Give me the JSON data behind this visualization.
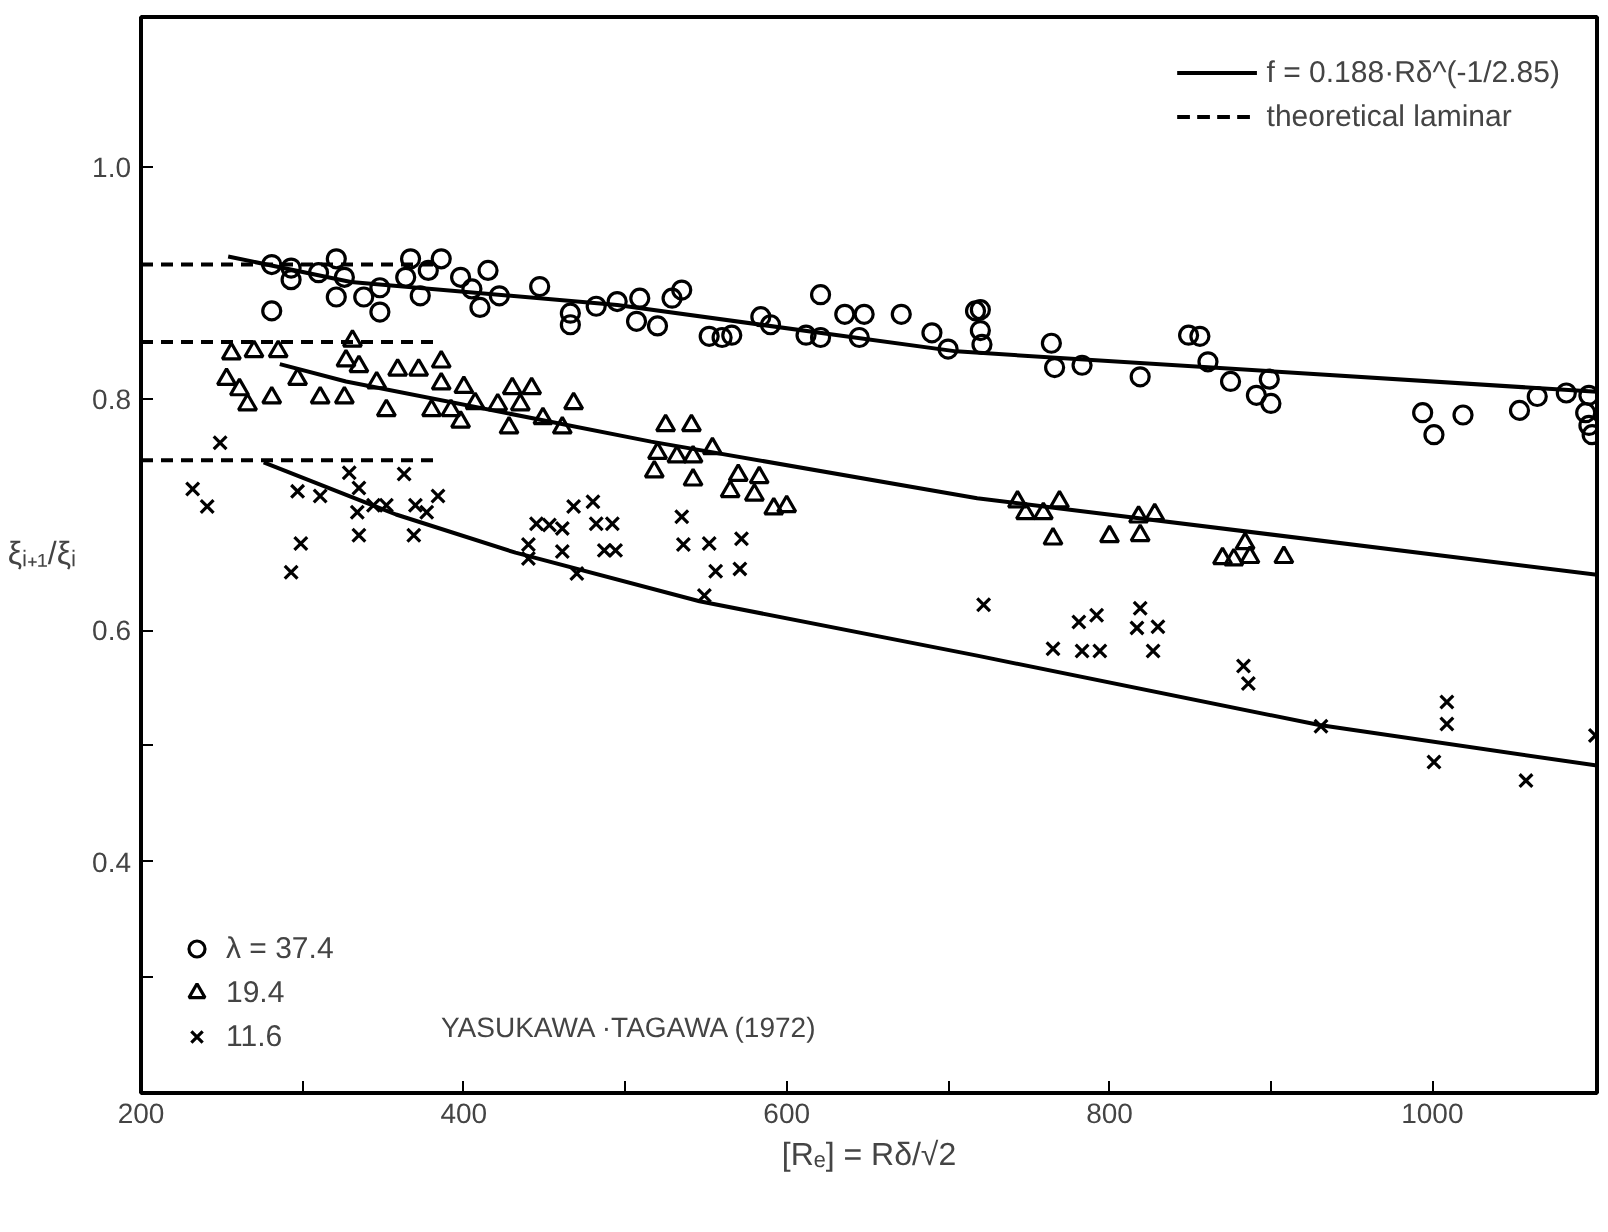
{
  "chart_data": {
    "type": "scatter",
    "xlabel": "[Rₑ] = Rδ/√2",
    "ylabel": "ξᵢ₊₁/ξᵢ",
    "xlim": [
      200,
      1102
    ],
    "ylim": [
      0.2,
      1.13
    ],
    "xticks": [
      200,
      {
        "value": 300,
        "label": null
      },
      400,
      {
        "value": 500,
        "label": null
      },
      600,
      {
        "value": 700,
        "label": null
      },
      800,
      {
        "value": 900,
        "label": null
      },
      1000
    ],
    "yticks": [
      {
        "value": 0.3,
        "label": null
      },
      0.4,
      {
        "value": 0.5,
        "label": null
      },
      0.6,
      0.8,
      {
        "value": 1.0,
        "label": "1.0"
      }
    ],
    "grid": false,
    "legend": "top right",
    "annotations": [
      "YASUKAWA ·TAGAWA (1972)"
    ],
    "series": [
      {
        "name": "λ = 37.4",
        "marker": "circle",
        "color": "#000000",
        "x": [
          281,
          281,
          293,
          293,
          310,
          321,
          326,
          321,
          338,
          348,
          348,
          367,
          364,
          373,
          378,
          386,
          398,
          405,
          415,
          410,
          422,
          447,
          466,
          466,
          482,
          495,
          509,
          507,
          520,
          529,
          535,
          552,
          560,
          566,
          584,
          590,
          612,
          621,
          621,
          636,
          648,
          645,
          671,
          690,
          700,
          717,
          720,
          720,
          721,
          764,
          766,
          783,
          819,
          849,
          856,
          861,
          875,
          891,
          899,
          900,
          994,
          1001,
          1019,
          1054,
          1065,
          1083,
          1097,
          1095,
          1097,
          1099
        ],
        "values": [
          0.916,
          0.876,
          0.913,
          0.903,
          0.909,
          0.921,
          0.905,
          0.888,
          0.888,
          0.896,
          0.875,
          0.921,
          0.905,
          0.889,
          0.911,
          0.921,
          0.905,
          0.895,
          0.911,
          0.879,
          0.889,
          0.897,
          0.874,
          0.864,
          0.88,
          0.884,
          0.887,
          0.867,
          0.863,
          0.887,
          0.894,
          0.854,
          0.853,
          0.855,
          0.871,
          0.864,
          0.855,
          0.853,
          0.89,
          0.873,
          0.873,
          0.853,
          0.873,
          0.857,
          0.843,
          0.876,
          0.877,
          0.859,
          0.847,
          0.848,
          0.827,
          0.829,
          0.819,
          0.855,
          0.854,
          0.832,
          0.815,
          0.803,
          0.817,
          0.796,
          0.788,
          0.769,
          0.786,
          0.79,
          0.802,
          0.805,
          0.803,
          0.788,
          0.777,
          0.769
        ]
      },
      {
        "name": "19.4",
        "marker": "triangle",
        "color": "#000000",
        "x": [
          256,
          270,
          285,
          253,
          261,
          266,
          281,
          297,
          311,
          326,
          331,
          327,
          335,
          346,
          352,
          359,
          372,
          386,
          386,
          380,
          392,
          398,
          400,
          407,
          421,
          430,
          442,
          435,
          428,
          449,
          461,
          468,
          525,
          541,
          520,
          532,
          542,
          554,
          518,
          542,
          570,
          583,
          565,
          580,
          592,
          600,
          743,
          748,
          759,
          769,
          765,
          800,
          819,
          828,
          818,
          884,
          877,
          870,
          887,
          908
        ],
        "values": [
          0.839,
          0.841,
          0.841,
          0.817,
          0.808,
          0.795,
          0.801,
          0.817,
          0.801,
          0.801,
          0.85,
          0.833,
          0.828,
          0.814,
          0.79,
          0.825,
          0.825,
          0.832,
          0.813,
          0.79,
          0.79,
          0.78,
          0.81,
          0.796,
          0.795,
          0.809,
          0.809,
          0.795,
          0.775,
          0.783,
          0.775,
          0.796,
          0.777,
          0.777,
          0.753,
          0.75,
          0.75,
          0.757,
          0.737,
          0.73,
          0.734,
          0.732,
          0.72,
          0.717,
          0.705,
          0.707,
          0.711,
          0.701,
          0.701,
          0.711,
          0.679,
          0.681,
          0.682,
          0.7,
          0.698,
          0.675,
          0.661,
          0.662,
          0.663,
          0.663
        ]
      },
      {
        "name": "11.6",
        "marker": "x",
        "color": "#000000",
        "x": [
          249,
          232,
          241,
          297,
          311,
          299,
          293,
          329,
          335,
          334,
          335,
          344,
          352,
          363,
          370,
          377,
          384,
          369,
          445,
          453,
          461,
          440,
          440,
          461,
          468,
          480,
          482,
          492,
          487,
          494,
          470,
          535,
          536,
          552,
          572,
          556,
          571,
          549,
          722,
          765,
          781,
          792,
          783,
          794,
          819,
          817,
          830,
          827,
          883,
          886,
          931,
          1009,
          1009,
          1001,
          1058,
          1101
        ],
        "values": [
          0.762,
          0.722,
          0.707,
          0.72,
          0.716,
          0.675,
          0.65,
          0.736,
          0.723,
          0.702,
          0.682,
          0.708,
          0.708,
          0.735,
          0.708,
          0.702,
          0.716,
          0.682,
          0.692,
          0.691,
          0.688,
          0.674,
          0.662,
          0.668,
          0.707,
          0.711,
          0.692,
          0.692,
          0.669,
          0.669,
          0.649,
          0.698,
          0.674,
          0.675,
          0.679,
          0.651,
          0.653,
          0.63,
          0.622,
          0.584,
          0.607,
          0.613,
          0.582,
          0.582,
          0.619,
          0.602,
          0.603,
          0.582,
          0.569,
          0.554,
          0.517,
          0.538,
          0.519,
          0.486,
          0.47,
          0.509
        ]
      },
      {
        "name": "f = 0.188·Rδ^(-1/2.85)",
        "type": "line",
        "line_style": "solid",
        "color": "#000000",
        "x": [
          254,
          330,
          495,
          705,
          1102
        ],
        "values": [
          0.923,
          0.901,
          0.881,
          0.841,
          0.806
        ]
      },
      {
        "type": "line",
        "line_style": "solid",
        "color": "#000000",
        "x": [
          286,
          327,
          516,
          718,
          1102
        ],
        "values": [
          0.83,
          0.815,
          0.763,
          0.714,
          0.648
        ]
      },
      {
        "type": "line",
        "line_style": "solid",
        "color": "#000000",
        "x": [
          276,
          358,
          432,
          546,
          718,
          930,
          1102
        ],
        "values": [
          0.745,
          0.7,
          0.667,
          0.625,
          0.578,
          0.518,
          0.483
        ]
      },
      {
        "name": "theoretical laminar",
        "type": "line",
        "line_style": "dashed",
        "color": "#000000",
        "x": [
          200,
          385
        ],
        "values": [
          0.916,
          0.916
        ]
      },
      {
        "type": "line",
        "line_style": "dashed",
        "color": "#000000",
        "x": [
          200,
          385
        ],
        "values": [
          0.849,
          0.849
        ]
      },
      {
        "type": "line",
        "line_style": "dashed",
        "color": "#000000",
        "x": [
          200,
          385
        ],
        "values": [
          0.747,
          0.747
        ]
      }
    ]
  }
}
